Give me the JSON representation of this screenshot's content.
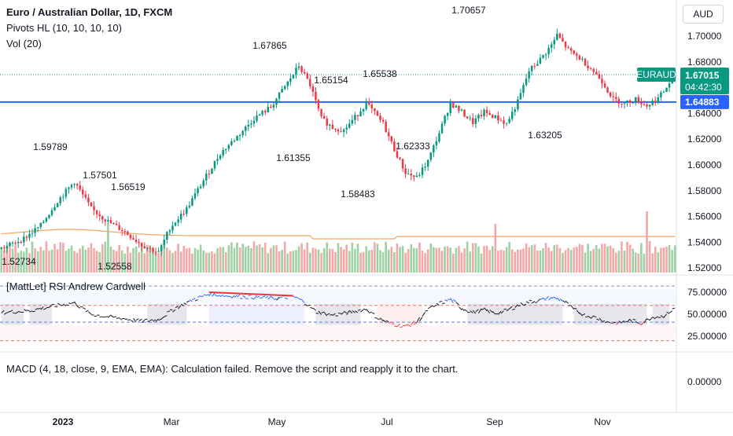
{
  "header": {
    "title": "Euro / Australian Dollar, 1D, FXCM",
    "indicator_pivots": "Pivots HL (10, 10, 10, 10)",
    "indicator_vol": "Vol (20)",
    "currency_button": "AUD"
  },
  "price_tags": {
    "symbol": "EURAUD",
    "last_price": "1.67015",
    "countdown": "04:42:30",
    "level_price": "1.64883",
    "symbol_color": "#089981",
    "level_color": "#2962ff"
  },
  "rsi_panel": {
    "title": "[MattLet] RSI Andrew Cardwell",
    "ticks": [
      "75.00000",
      "50.00000",
      "25.00000"
    ]
  },
  "macd_panel": {
    "message": "MACD (4, 18, close, 9, EMA, EMA): Calculation failed. Remove the script and reapply it to the chart.",
    "tick": "0.00000"
  },
  "chart_data": {
    "type": "candlestick",
    "symbol": "EURAUD",
    "interval": "1D",
    "price_axis_ticks": [
      "1.70000",
      "1.68000",
      "1.66000",
      "1.64000",
      "1.62000",
      "1.60000",
      "1.58000",
      "1.56000",
      "1.54000",
      "1.52000"
    ],
    "x_axis_labels": [
      "2023",
      "Mar",
      "May",
      "Jul",
      "Sep",
      "Nov"
    ],
    "horizontal_level": 1.64883,
    "last_price": 1.67015,
    "pivot_labels": [
      {
        "text": "1.52734",
        "kind": "low"
      },
      {
        "text": "1.59789",
        "kind": "high"
      },
      {
        "text": "1.57501",
        "kind": "high"
      },
      {
        "text": "1.56519",
        "kind": "high"
      },
      {
        "text": "1.52558",
        "kind": "low"
      },
      {
        "text": "1.67865",
        "kind": "high"
      },
      {
        "text": "1.61355",
        "kind": "low"
      },
      {
        "text": "1.65154",
        "kind": "high"
      },
      {
        "text": "1.58483",
        "kind": "low"
      },
      {
        "text": "1.65538",
        "kind": "high"
      },
      {
        "text": "1.62333",
        "kind": "low"
      },
      {
        "text": "1.70657",
        "kind": "high"
      },
      {
        "text": "1.63205",
        "kind": "low"
      }
    ],
    "price_path": [
      [
        0,
        1.535
      ],
      [
        8,
        1.543
      ],
      [
        14,
        1.553
      ],
      [
        20,
        1.572
      ],
      [
        26,
        1.587
      ],
      [
        32,
        1.566
      ],
      [
        38,
        1.556
      ],
      [
        44,
        1.548
      ],
      [
        50,
        1.538
      ],
      [
        56,
        1.532
      ],
      [
        60,
        1.551
      ],
      [
        66,
        1.566
      ],
      [
        72,
        1.588
      ],
      [
        78,
        1.609
      ],
      [
        84,
        1.622
      ],
      [
        90,
        1.636
      ],
      [
        96,
        1.645
      ],
      [
        102,
        1.664
      ],
      [
        106,
        1.677
      ],
      [
        110,
        1.662
      ],
      [
        114,
        1.636
      ],
      [
        118,
        1.629
      ],
      [
        122,
        1.627
      ],
      [
        126,
        1.637
      ],
      [
        130,
        1.648
      ],
      [
        136,
        1.632
      ],
      [
        140,
        1.612
      ],
      [
        144,
        1.594
      ],
      [
        148,
        1.59
      ],
      [
        152,
        1.603
      ],
      [
        156,
        1.625
      ],
      [
        160,
        1.648
      ],
      [
        164,
        1.641
      ],
      [
        168,
        1.633
      ],
      [
        172,
        1.641
      ],
      [
        176,
        1.637
      ],
      [
        180,
        1.632
      ],
      [
        184,
        1.649
      ],
      [
        188,
        1.673
      ],
      [
        192,
        1.682
      ],
      [
        196,
        1.693
      ],
      [
        198,
        1.701
      ],
      [
        202,
        1.689
      ],
      [
        206,
        1.683
      ],
      [
        210,
        1.675
      ],
      [
        214,
        1.665
      ],
      [
        218,
        1.651
      ],
      [
        222,
        1.648
      ],
      [
        226,
        1.651
      ],
      [
        230,
        1.646
      ],
      [
        234,
        1.652
      ],
      [
        236,
        1.657
      ],
      [
        240,
        1.67
      ]
    ],
    "volume_spike_index": 230,
    "rsi_path": [
      [
        0,
        52
      ],
      [
        10,
        54
      ],
      [
        20,
        60
      ],
      [
        26,
        63
      ],
      [
        32,
        50
      ],
      [
        38,
        47
      ],
      [
        44,
        45
      ],
      [
        50,
        42
      ],
      [
        56,
        44
      ],
      [
        62,
        57
      ],
      [
        68,
        66
      ],
      [
        74,
        73
      ],
      [
        80,
        71
      ],
      [
        86,
        70
      ],
      [
        92,
        69
      ],
      [
        98,
        68
      ],
      [
        104,
        70
      ],
      [
        108,
        64
      ],
      [
        112,
        53
      ],
      [
        118,
        49
      ],
      [
        124,
        52
      ],
      [
        130,
        56
      ],
      [
        134,
        46
      ],
      [
        138,
        40
      ],
      [
        144,
        36
      ],
      [
        148,
        41
      ],
      [
        152,
        55
      ],
      [
        156,
        62
      ],
      [
        160,
        67
      ],
      [
        164,
        57
      ],
      [
        168,
        52
      ],
      [
        172,
        55
      ],
      [
        176,
        51
      ],
      [
        180,
        54
      ],
      [
        184,
        60
      ],
      [
        188,
        64
      ],
      [
        192,
        66
      ],
      [
        196,
        69
      ],
      [
        200,
        66
      ],
      [
        204,
        55
      ],
      [
        208,
        49
      ],
      [
        212,
        46
      ],
      [
        216,
        41
      ],
      [
        220,
        40
      ],
      [
        224,
        43
      ],
      [
        228,
        40
      ],
      [
        232,
        47
      ],
      [
        236,
        48
      ],
      [
        240,
        57
      ]
    ]
  }
}
